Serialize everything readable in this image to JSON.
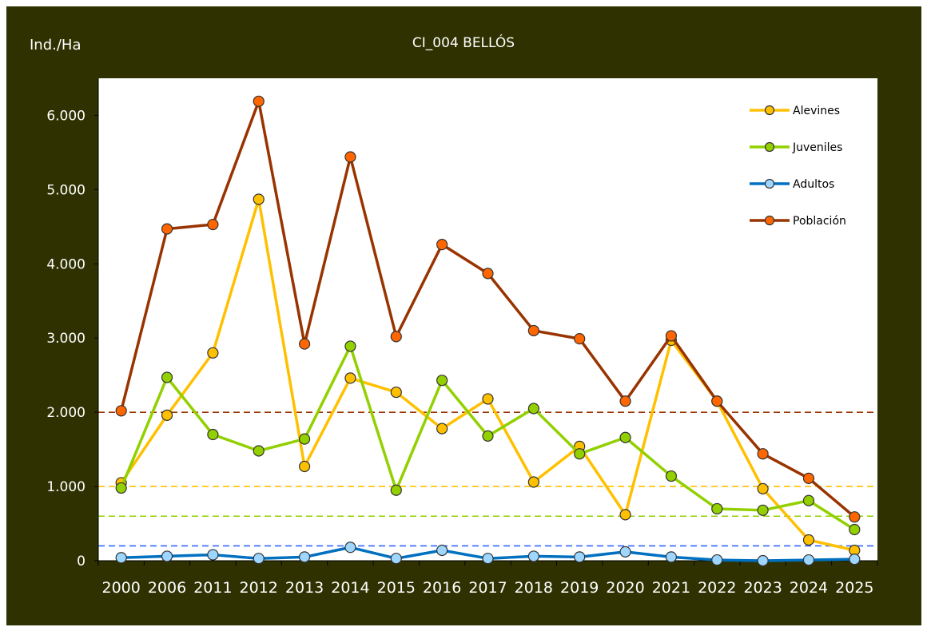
{
  "chart_data": {
    "type": "line",
    "title": "CI_004 BELLÓS",
    "ylabel": "Ind./Ha",
    "xlabel": "",
    "ylim": [
      0,
      6500
    ],
    "yticks": [
      0,
      1000,
      2000,
      3000,
      4000,
      5000,
      6000
    ],
    "ytick_labels": [
      "0",
      "1.000",
      "2.000",
      "3.000",
      "4.000",
      "5.000",
      "6.000"
    ],
    "categories": [
      "2000",
      "2006",
      "2011",
      "2012",
      "2013",
      "2014",
      "2015",
      "2016",
      "2017",
      "2018",
      "2019",
      "2020",
      "2021",
      "2022",
      "2023",
      "2024",
      "2025"
    ],
    "legend_position": "top-right",
    "grid": false,
    "series": [
      {
        "name": "Alevines",
        "color": "#ffc000",
        "marker_fill": "#ffc000",
        "values": [
          1050,
          1960,
          2800,
          4870,
          1270,
          2460,
          2270,
          1780,
          2180,
          1060,
          1540,
          620,
          2970,
          2150,
          970,
          280,
          140
        ]
      },
      {
        "name": "Juveniles",
        "color": "#92d000",
        "marker_fill": "#92d000",
        "values": [
          980,
          2470,
          1700,
          1480,
          1640,
          2890,
          950,
          2430,
          1680,
          2050,
          1440,
          1660,
          1140,
          700,
          680,
          810,
          420
        ]
      },
      {
        "name": "Adultos",
        "color": "#0070c0",
        "marker_fill": "#9dd6ff",
        "values": [
          40,
          60,
          80,
          30,
          50,
          180,
          30,
          140,
          30,
          60,
          50,
          120,
          50,
          10,
          0,
          10,
          20
        ]
      },
      {
        "name": "Población",
        "color": "#993300",
        "marker_fill": "#ff6600",
        "values": [
          2020,
          4470,
          4530,
          6190,
          2920,
          5440,
          3020,
          4260,
          3870,
          3100,
          2990,
          2150,
          3030,
          2150,
          1440,
          1110,
          590
        ]
      }
    ],
    "reference_lines": [
      {
        "value": 2000,
        "color": "#993300"
      },
      {
        "value": 1000,
        "color": "#ffc000"
      },
      {
        "value": 600,
        "color": "#92d000"
      },
      {
        "value": 200,
        "color": "#3366ff"
      }
    ]
  }
}
